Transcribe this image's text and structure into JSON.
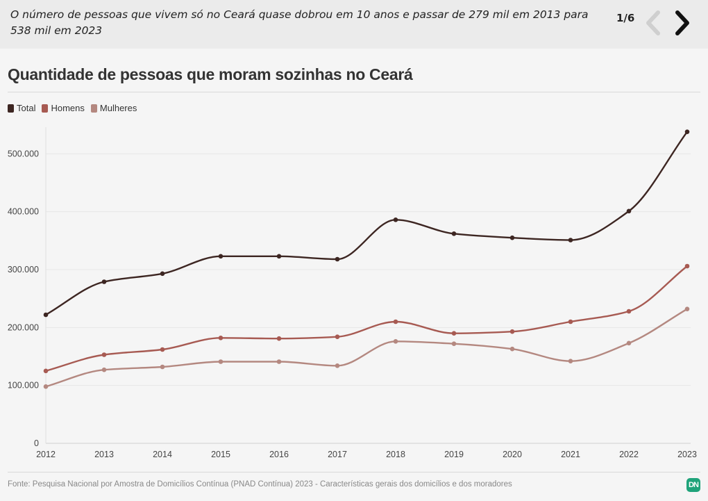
{
  "header": {
    "caption": "O número de pessoas que vivem só no Ceará quase dobrou em 10 anos e passar de 279 mil em 2013 para 538 mil em 2023",
    "pager": "1/6",
    "prev_icon": "chevron-left-icon",
    "next_icon": "chevron-right-icon"
  },
  "footer": {
    "source": "Fonte: Pesquisa Nacional por Amostra de Domicílios Contínua (PNAD Contínua) 2023 - Características gerais dos domicílios e dos moradores",
    "logo_text": "DN",
    "logo_color": "#1fa37a"
  },
  "chart_data": {
    "type": "line",
    "title": "Quantidade de pessoas que moram sozinhas no Ceará",
    "x": [
      "2012",
      "2013",
      "2014",
      "2015",
      "2016",
      "2017",
      "2018",
      "2019",
      "2020",
      "2021",
      "2022",
      "2023"
    ],
    "series": [
      {
        "name": "Total",
        "color": "#3d2622",
        "values": [
          222000,
          279000,
          293000,
          323000,
          323000,
          318000,
          386000,
          362000,
          355000,
          351000,
          401000,
          538000
        ]
      },
      {
        "name": "Homens",
        "color": "#a75a52",
        "values": [
          125000,
          153000,
          162000,
          182000,
          181000,
          184000,
          210000,
          190000,
          193000,
          210000,
          228000,
          306000
        ]
      },
      {
        "name": "Mulheres",
        "color": "#b48880",
        "values": [
          98000,
          127000,
          132000,
          141000,
          141000,
          134000,
          176000,
          172000,
          163000,
          142000,
          173000,
          232000
        ]
      }
    ],
    "yticks": [
      0,
      100000,
      200000,
      300000,
      400000,
      500000
    ],
    "ytick_labels": [
      "0",
      "100.000",
      "200.000",
      "300.000",
      "400.000",
      "500.000"
    ],
    "ylim": [
      0,
      550000
    ],
    "grid": true,
    "legend_position": "top-left"
  }
}
